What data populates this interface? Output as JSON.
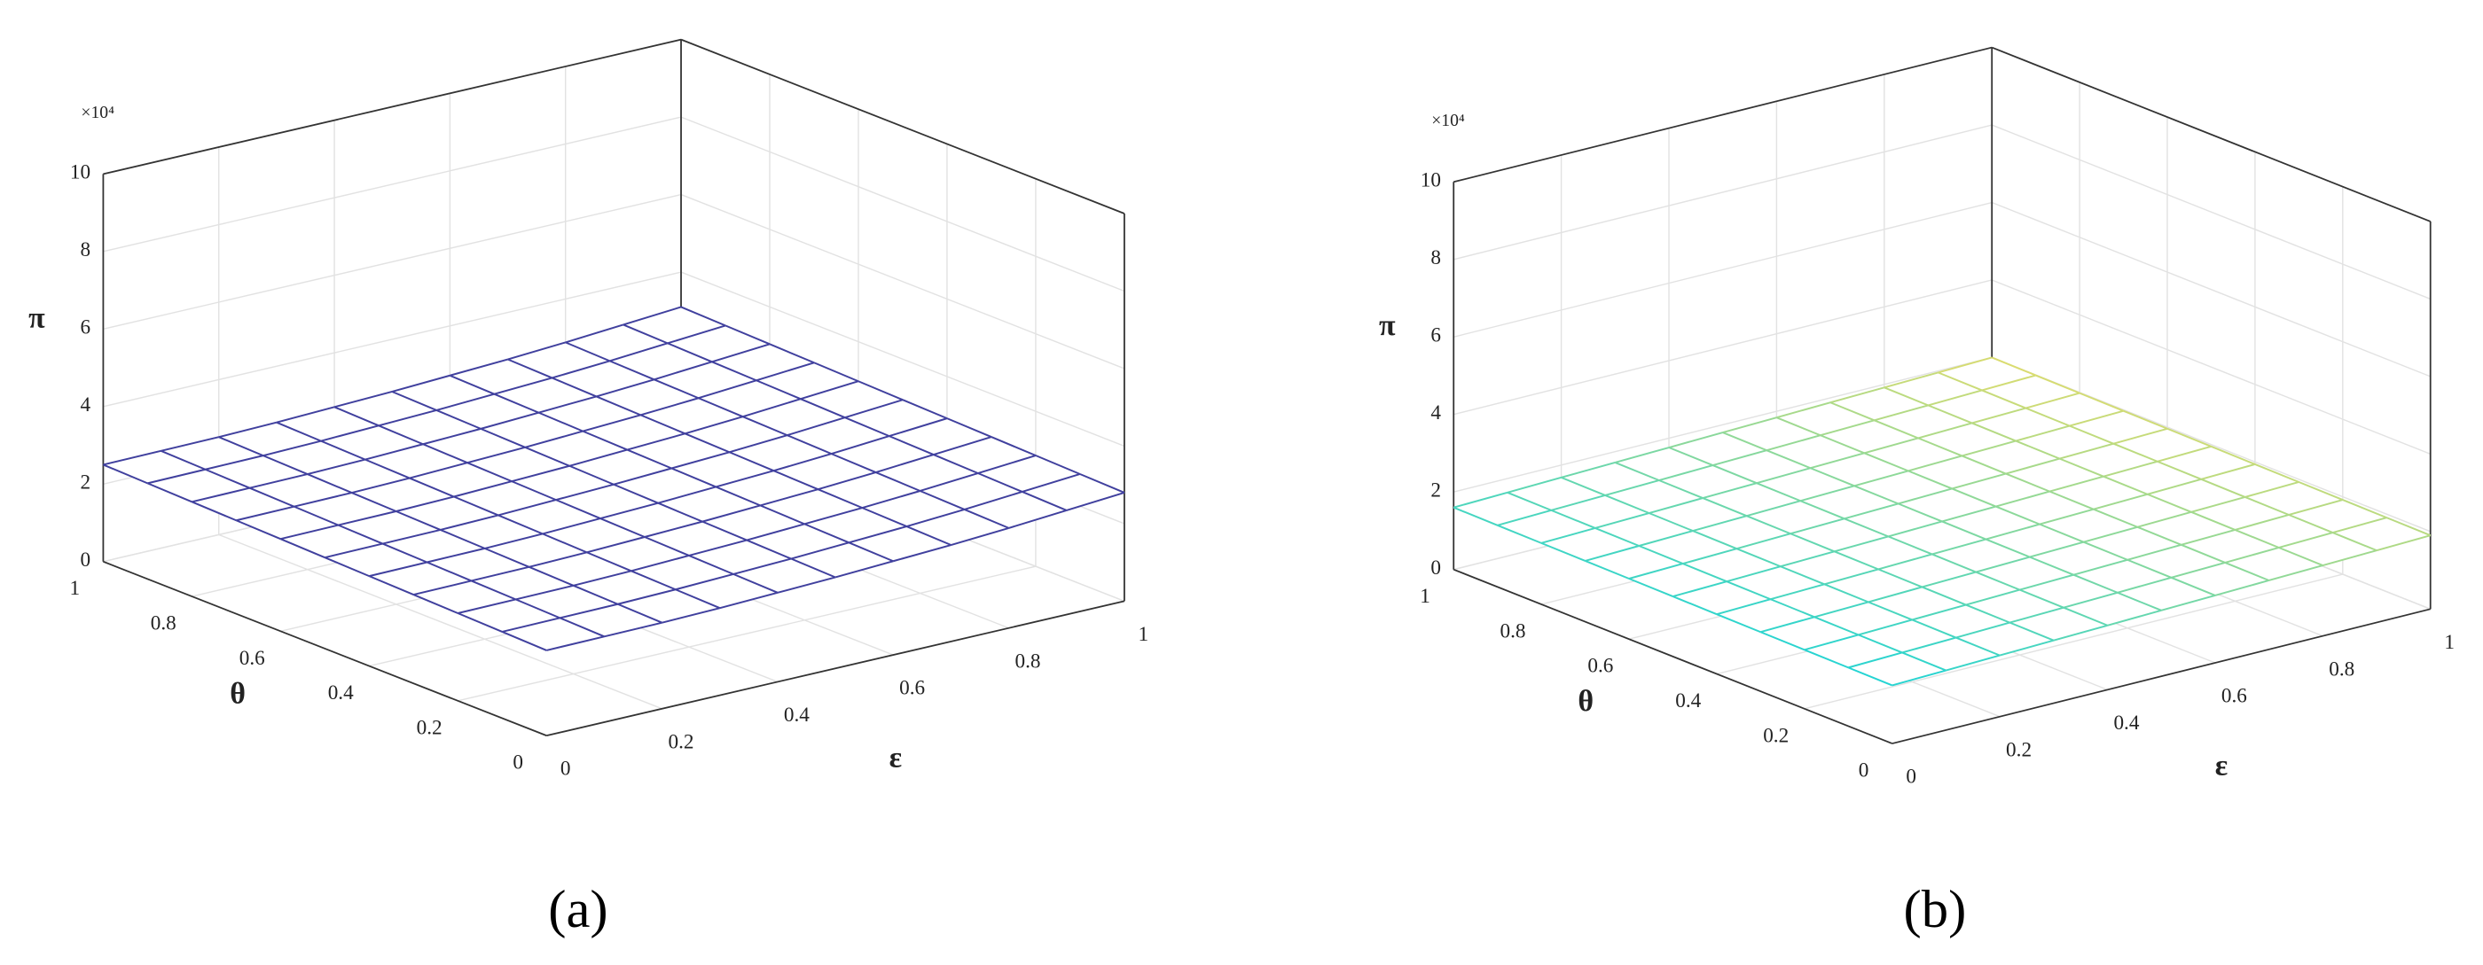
{
  "chart_data": [
    {
      "type": "surface",
      "label": "(a)",
      "xlabel": "ε",
      "ylabel": "θ",
      "zlabel": "π",
      "z_multiplier": "×10⁴",
      "color": "#40409e",
      "x": [
        0,
        0.1,
        0.2,
        0.3,
        0.4,
        0.5,
        0.6,
        0.7,
        0.8,
        0.9,
        1
      ],
      "y": [
        0,
        0.1,
        0.2,
        0.3,
        0.4,
        0.5,
        0.6,
        0.7,
        0.8,
        0.9,
        1
      ],
      "z": [
        [
          2.2,
          2.21,
          2.22,
          2.25,
          2.3,
          2.35,
          2.42,
          2.49,
          2.58,
          2.69,
          2.8
        ],
        [
          2.23,
          2.24,
          2.25,
          2.28,
          2.33,
          2.38,
          2.45,
          2.52,
          2.61,
          2.72,
          2.83
        ],
        [
          2.26,
          2.27,
          2.28,
          2.31,
          2.36,
          2.41,
          2.48,
          2.55,
          2.64,
          2.75,
          2.86
        ],
        [
          2.29,
          2.3,
          2.31,
          2.34,
          2.39,
          2.44,
          2.51,
          2.58,
          2.67,
          2.78,
          2.89
        ],
        [
          2.32,
          2.33,
          2.34,
          2.37,
          2.42,
          2.47,
          2.54,
          2.61,
          2.7,
          2.81,
          2.92
        ],
        [
          2.35,
          2.36,
          2.37,
          2.4,
          2.45,
          2.5,
          2.57,
          2.64,
          2.73,
          2.84,
          2.95
        ],
        [
          2.38,
          2.39,
          2.4,
          2.43,
          2.48,
          2.53,
          2.6,
          2.67,
          2.76,
          2.87,
          2.98
        ],
        [
          2.41,
          2.42,
          2.43,
          2.46,
          2.51,
          2.56,
          2.63,
          2.7,
          2.79,
          2.9,
          3.01
        ],
        [
          2.44,
          2.45,
          2.46,
          2.49,
          2.54,
          2.59,
          2.66,
          2.73,
          2.82,
          2.93,
          3.04
        ],
        [
          2.47,
          2.48,
          2.49,
          2.52,
          2.57,
          2.62,
          2.69,
          2.76,
          2.85,
          2.96,
          3.07
        ],
        [
          2.5,
          2.51,
          2.52,
          2.55,
          2.6,
          2.65,
          2.72,
          2.79,
          2.88,
          2.99,
          3.1
        ]
      ],
      "xlim": [
        0,
        1
      ],
      "ylim": [
        0,
        1
      ],
      "zlim": [
        0,
        10
      ],
      "xticks": [
        0,
        0.2,
        0.4,
        0.6,
        0.8,
        1
      ],
      "yticks": [
        0,
        0.2,
        0.4,
        0.6,
        0.8,
        1
      ],
      "zticks": [
        0,
        2,
        4,
        6,
        8,
        10
      ],
      "grid": true
    },
    {
      "type": "surface",
      "label": "(b)",
      "xlabel": "ε",
      "ylabel": "θ",
      "zlabel": "π",
      "z_multiplier": "×10⁴",
      "colormap": [
        "#22d4d4",
        "#dcdc6e"
      ],
      "x": [
        0,
        0.1,
        0.2,
        0.3,
        0.4,
        0.5,
        0.6,
        0.7,
        0.8,
        0.9,
        1
      ],
      "y": [
        0,
        0.1,
        0.2,
        0.3,
        0.4,
        0.5,
        0.6,
        0.7,
        0.8,
        0.9,
        1
      ],
      "z": [
        [
          1.5,
          1.54,
          1.58,
          1.62,
          1.66,
          1.7,
          1.74,
          1.78,
          1.82,
          1.86,
          1.9
        ],
        [
          1.51,
          1.55,
          1.59,
          1.63,
          1.67,
          1.71,
          1.75,
          1.79,
          1.83,
          1.87,
          1.91
        ],
        [
          1.52,
          1.56,
          1.6,
          1.64,
          1.68,
          1.72,
          1.76,
          1.8,
          1.84,
          1.88,
          1.92
        ],
        [
          1.53,
          1.57,
          1.61,
          1.65,
          1.69,
          1.73,
          1.77,
          1.81,
          1.85,
          1.89,
          1.93
        ],
        [
          1.54,
          1.58,
          1.62,
          1.66,
          1.7,
          1.74,
          1.78,
          1.82,
          1.86,
          1.9,
          1.94
        ],
        [
          1.55,
          1.59,
          1.63,
          1.67,
          1.71,
          1.75,
          1.79,
          1.83,
          1.87,
          1.91,
          1.95
        ],
        [
          1.56,
          1.6,
          1.64,
          1.68,
          1.72,
          1.76,
          1.8,
          1.84,
          1.88,
          1.92,
          1.96
        ],
        [
          1.57,
          1.61,
          1.65,
          1.69,
          1.73,
          1.77,
          1.81,
          1.85,
          1.89,
          1.93,
          1.97
        ],
        [
          1.58,
          1.62,
          1.66,
          1.7,
          1.74,
          1.78,
          1.82,
          1.86,
          1.9,
          1.94,
          1.98
        ],
        [
          1.59,
          1.63,
          1.67,
          1.71,
          1.75,
          1.79,
          1.83,
          1.87,
          1.91,
          1.95,
          1.99
        ],
        [
          1.6,
          1.64,
          1.68,
          1.72,
          1.76,
          1.8,
          1.84,
          1.88,
          1.92,
          1.96,
          2.0
        ]
      ],
      "xlim": [
        0,
        1
      ],
      "ylim": [
        0,
        1
      ],
      "zlim": [
        0,
        10
      ],
      "xticks": [
        0,
        0.2,
        0.4,
        0.6,
        0.8,
        1
      ],
      "yticks": [
        0,
        0.2,
        0.4,
        0.6,
        0.8,
        1
      ],
      "zticks": [
        0,
        2,
        4,
        6,
        8,
        10
      ],
      "grid": true
    }
  ]
}
